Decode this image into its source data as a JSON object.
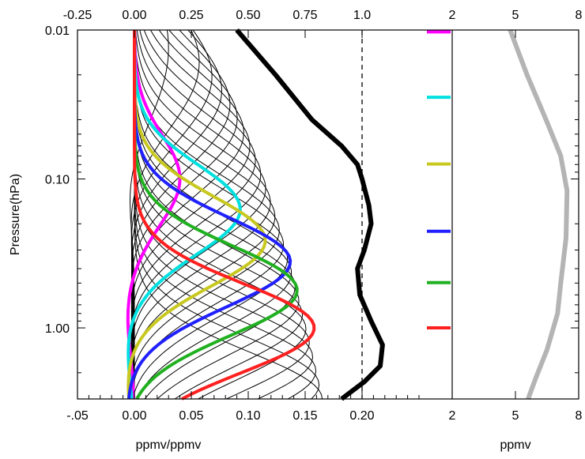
{
  "chart_data": {
    "type": "line",
    "ylabel": "Pressure(hPa)",
    "y_scale": "log",
    "ylim": [
      3.0,
      0.01
    ],
    "y_ticks": [
      {
        "value": 0.01,
        "label": "0.01"
      },
      {
        "value": 0.1,
        "label": "0.10"
      },
      {
        "value": 1.0,
        "label": "1.00"
      }
    ],
    "panels": [
      {
        "name": "averaging-kernels",
        "xlabel": "ppmv/ppmv",
        "bottom_ticks": [
          {
            "value": -0.05,
            "label": "-.05"
          },
          {
            "value": 0.0,
            "label": "0.00"
          },
          {
            "value": 0.05,
            "label": "0.05"
          },
          {
            "value": 0.1,
            "label": "0.10"
          },
          {
            "value": 0.15,
            "label": "0.15"
          },
          {
            "value": 0.2,
            "label": "0.20"
          }
        ],
        "top_ticks": [
          {
            "value": -0.25,
            "label": "-0.25"
          },
          {
            "value": 0.0,
            "label": "0.00"
          },
          {
            "value": 0.25,
            "label": "0.25"
          },
          {
            "value": 0.5,
            "label": "0.50"
          },
          {
            "value": 0.75,
            "label": "0.75"
          },
          {
            "value": 1.0,
            "label": "1.0"
          }
        ],
        "xlim_bottom": [
          -0.05,
          0.25
        ],
        "xlim_top": [
          -0.25,
          1.25
        ],
        "reference_line": {
          "axis": "top",
          "value": 1.0,
          "style": "dashed"
        },
        "kernel_count": 26,
        "highlighted_kernels": [
          {
            "color": "#ff00ff",
            "peak_pressure": 0.1,
            "peak_value": 0.04,
            "axis": "bottom"
          },
          {
            "color": "#00e0e0",
            "peak_pressure": 0.16,
            "peak_value": 0.093,
            "axis": "bottom"
          },
          {
            "color": "#c8c820",
            "peak_pressure": 0.26,
            "peak_value": 0.115,
            "axis": "bottom"
          },
          {
            "color": "#2020ff",
            "peak_pressure": 0.36,
            "peak_value": 0.137,
            "axis": "bottom"
          },
          {
            "color": "#20b020",
            "peak_pressure": 0.56,
            "peak_value": 0.143,
            "axis": "bottom"
          },
          {
            "color": "#ff2020",
            "peak_pressure": 1.0,
            "peak_value": 0.158,
            "axis": "bottom"
          }
        ],
        "area_sum": {
          "color": "#000000",
          "axis": "top",
          "points": [
            {
              "p": 0.01,
              "x": 0.45
            },
            {
              "p": 0.02,
              "x": 0.62
            },
            {
              "p": 0.04,
              "x": 0.78
            },
            {
              "p": 0.06,
              "x": 0.91
            },
            {
              "p": 0.08,
              "x": 0.98
            },
            {
              "p": 0.1,
              "x": 1.0
            },
            {
              "p": 0.15,
              "x": 1.03
            },
            {
              "p": 0.2,
              "x": 1.04
            },
            {
              "p": 0.3,
              "x": 1.01
            },
            {
              "p": 0.4,
              "x": 0.98
            },
            {
              "p": 0.6,
              "x": 0.99
            },
            {
              "p": 0.9,
              "x": 1.04
            },
            {
              "p": 1.3,
              "x": 1.09
            },
            {
              "p": 1.8,
              "x": 1.08
            },
            {
              "p": 2.3,
              "x": 1.01
            },
            {
              "p": 3.0,
              "x": 0.91
            }
          ]
        }
      },
      {
        "name": "resolution-markers",
        "top_ticks": [
          {
            "value": 2,
            "label": "2"
          }
        ],
        "bottom_ticks": [
          {
            "value": 2,
            "label": "2"
          }
        ],
        "markers": [
          {
            "color": "#ff00ff",
            "pressure": 0.0103
          },
          {
            "color": "#00e0e0",
            "pressure": 0.0283
          },
          {
            "color": "#c8c820",
            "pressure": 0.0794
          },
          {
            "color": "#2020ff",
            "pressure": 0.2247
          },
          {
            "color": "#20b020",
            "pressure": 0.4968
          },
          {
            "color": "#ff2020",
            "pressure": 1.0
          }
        ]
      },
      {
        "name": "a-priori-profile",
        "xlabel": "ppmv",
        "top_ticks": [
          {
            "value": 5,
            "label": "5"
          },
          {
            "value": 8,
            "label": "8"
          }
        ],
        "bottom_ticks": [
          {
            "value": 5,
            "label": "5"
          },
          {
            "value": 8,
            "label": "8"
          }
        ],
        "xlim": [
          2,
          8
        ],
        "profile": {
          "color": "#b4b4b4",
          "points": [
            {
              "p": 0.01,
              "x": 4.75
            },
            {
              "p": 0.02,
              "x": 5.55
            },
            {
              "p": 0.04,
              "x": 6.45
            },
            {
              "p": 0.07,
              "x": 7.15
            },
            {
              "p": 0.12,
              "x": 7.45
            },
            {
              "p": 0.25,
              "x": 7.4
            },
            {
              "p": 0.5,
              "x": 7.15
            },
            {
              "p": 0.8,
              "x": 7.0
            },
            {
              "p": 1.4,
              "x": 6.5
            },
            {
              "p": 2.2,
              "x": 5.95
            },
            {
              "p": 3.0,
              "x": 5.6
            }
          ]
        }
      }
    ]
  }
}
